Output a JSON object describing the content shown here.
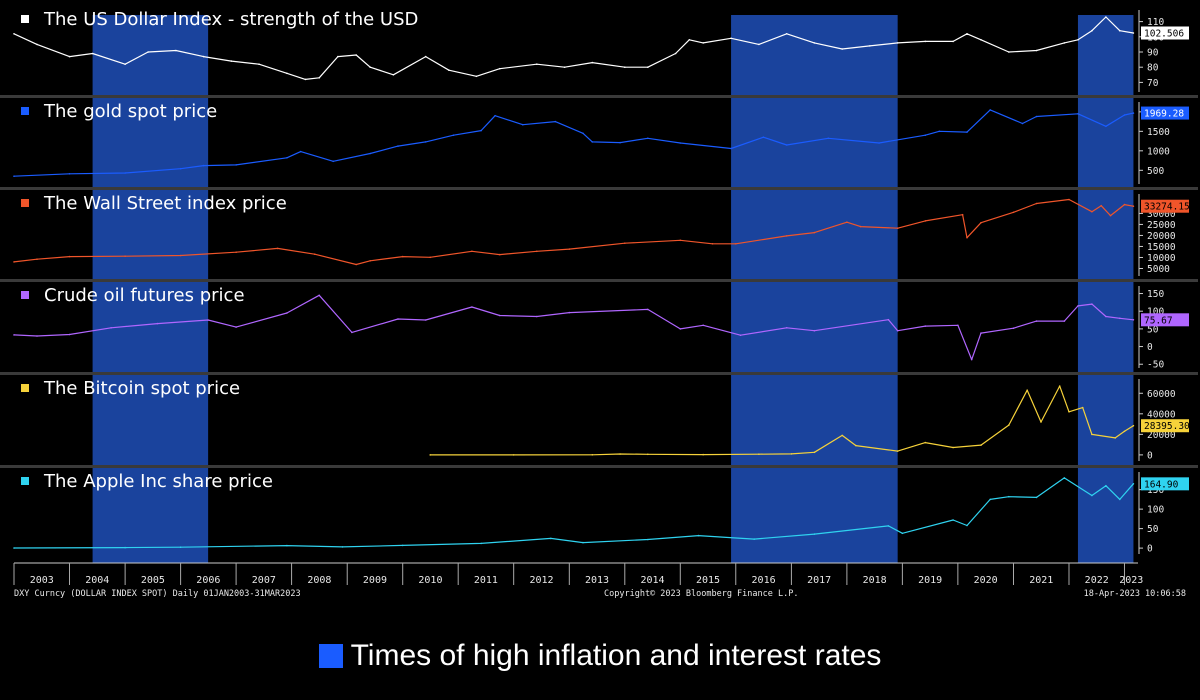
{
  "chart_data": {
    "type": "line",
    "x_range": [
      "2003-01-01",
      "2023-03-31"
    ],
    "x_ticks": [
      "2003",
      "2004",
      "2005",
      "2006",
      "2007",
      "2008",
      "2009",
      "2010",
      "2011",
      "2012",
      "2013",
      "2014",
      "2015",
      "2016",
      "2017",
      "2018",
      "2019",
      "2020",
      "2021",
      "2022",
      "2023"
    ],
    "shaded_periods": [
      [
        "2004-06",
        "2006-07"
      ],
      [
        "2015-12",
        "2018-12"
      ],
      [
        "2022-03",
        "2023-03"
      ]
    ],
    "shade_color": "#1f4fb8",
    "legend": {
      "label": "Times of high inflation and interest rates",
      "color": "#1a5cff"
    },
    "panels": [
      {
        "title": "The US Dollar Index - strength of the USD",
        "color": "#ffffff",
        "last_value": "102.506",
        "last_value_bg": "#ffffff",
        "last_value_fg": "#000000",
        "ylim": [
          65,
          115
        ],
        "yticks": [
          70,
          80,
          90,
          100,
          110
        ],
        "x": [
          "2003-01",
          "2003-06",
          "2004-01",
          "2004-06",
          "2005-01",
          "2005-06",
          "2005-12",
          "2006-06",
          "2006-12",
          "2007-06",
          "2007-12",
          "2008-04",
          "2008-07",
          "2008-11",
          "2009-03",
          "2009-06",
          "2009-11",
          "2010-06",
          "2010-11",
          "2011-05",
          "2011-10",
          "2012-06",
          "2012-12",
          "2013-06",
          "2014-01",
          "2014-06",
          "2014-12",
          "2015-03",
          "2015-06",
          "2015-12",
          "2016-06",
          "2016-12",
          "2017-06",
          "2017-12",
          "2018-06",
          "2018-12",
          "2019-06",
          "2019-12",
          "2020-03",
          "2020-06",
          "2020-12",
          "2021-06",
          "2021-12",
          "2022-03",
          "2022-06",
          "2022-09",
          "2022-12",
          "2023-03"
        ],
        "y": [
          102,
          95,
          87,
          89,
          82,
          90,
          91,
          87,
          84,
          82,
          76,
          72,
          73,
          87,
          88,
          80,
          75,
          87,
          78,
          74,
          79,
          82,
          80,
          83,
          80,
          80,
          89,
          98,
          96,
          99,
          95,
          102,
          96,
          92,
          94,
          96,
          97,
          97,
          102,
          98,
          90,
          91,
          96,
          98,
          104,
          113,
          104,
          102.5
        ]
      },
      {
        "title": "The gold spot price",
        "color": "#1a5cff",
        "last_value": "1969.28",
        "last_value_bg": "#1a5cff",
        "last_value_fg": "#ffffff",
        "ylim": [
          200,
          2150
        ],
        "yticks": [
          500,
          1000,
          1500,
          2000
        ],
        "x": [
          "2003-01",
          "2004-01",
          "2005-01",
          "2006-01",
          "2006-06",
          "2007-01",
          "2007-12",
          "2008-03",
          "2008-10",
          "2009-06",
          "2009-12",
          "2010-06",
          "2010-12",
          "2011-06",
          "2011-09",
          "2012-03",
          "2012-10",
          "2013-04",
          "2013-06",
          "2013-12",
          "2014-06",
          "2015-01",
          "2015-12",
          "2016-07",
          "2016-12",
          "2017-09",
          "2018-08",
          "2019-06",
          "2019-09",
          "2020-03",
          "2020-08",
          "2021-03",
          "2021-06",
          "2022-03",
          "2022-09",
          "2023-01",
          "2023-03"
        ],
        "y": [
          350,
          410,
          430,
          540,
          620,
          640,
          820,
          980,
          730,
          930,
          1120,
          1230,
          1400,
          1520,
          1900,
          1670,
          1750,
          1450,
          1230,
          1210,
          1320,
          1200,
          1060,
          1350,
          1150,
          1320,
          1200,
          1400,
          1500,
          1480,
          2050,
          1700,
          1880,
          1950,
          1630,
          1920,
          1969
        ]
      },
      {
        "title": "The Wall Street index price",
        "color": "#f0552a",
        "last_value": "33274.15",
        "last_value_bg": "#f0552a",
        "last_value_fg": "#000000",
        "ylim": [
          2500,
          37000
        ],
        "yticks": [
          5000,
          10000,
          15000,
          20000,
          25000,
          30000
        ],
        "x": [
          "2003-01",
          "2003-06",
          "2004-01",
          "2005-01",
          "2006-01",
          "2007-01",
          "2007-10",
          "2008-06",
          "2009-03",
          "2009-06",
          "2010-01",
          "2010-07",
          "2011-04",
          "2011-10",
          "2012-06",
          "2013-01",
          "2014-01",
          "2015-01",
          "2015-08",
          "2016-01",
          "2016-12",
          "2017-06",
          "2018-01",
          "2018-04",
          "2018-12",
          "2019-06",
          "2020-02",
          "2020-03",
          "2020-06",
          "2021-01",
          "2021-06",
          "2022-01",
          "2022-06",
          "2022-08",
          "2022-10",
          "2023-01",
          "2023-03"
        ],
        "y": [
          8000,
          9200,
          10400,
          10600,
          10900,
          12400,
          14100,
          11500,
          6800,
          8500,
          10400,
          10100,
          12800,
          11300,
          12800,
          13800,
          16500,
          17800,
          16200,
          16200,
          19800,
          21300,
          26000,
          24000,
          23300,
          26600,
          29400,
          19000,
          25800,
          30500,
          34500,
          36300,
          30800,
          33500,
          29000,
          34000,
          33274
        ]
      },
      {
        "title": "Crude oil futures price",
        "color": "#b066ff",
        "last_value": "75.67",
        "last_value_bg": "#b066ff",
        "last_value_fg": "#000000",
        "ylim": [
          -55,
          160
        ],
        "yticks": [
          -50,
          0,
          50,
          100,
          150
        ],
        "x": [
          "2003-01",
          "2003-06",
          "2004-01",
          "2004-10",
          "2005-08",
          "2006-07",
          "2007-01",
          "2007-12",
          "2008-07",
          "2009-02",
          "2009-12",
          "2010-06",
          "2011-04",
          "2011-10",
          "2012-06",
          "2013-01",
          "2014-06",
          "2015-01",
          "2015-06",
          "2016-02",
          "2016-12",
          "2017-06",
          "2018-10",
          "2018-12",
          "2019-06",
          "2020-01",
          "2020-04",
          "2020-06",
          "2021-01",
          "2021-06",
          "2021-12",
          "2022-03",
          "2022-06",
          "2022-09",
          "2022-12",
          "2023-03"
        ],
        "y": [
          33,
          30,
          34,
          53,
          65,
          75,
          55,
          95,
          145,
          40,
          78,
          75,
          112,
          88,
          85,
          96,
          105,
          50,
          60,
          32,
          53,
          45,
          76,
          45,
          58,
          60,
          -37,
          38,
          52,
          72,
          72,
          115,
          120,
          85,
          80,
          75.67
        ]
      },
      {
        "title": "The Bitcoin spot price",
        "color": "#f6d23a",
        "last_value": "28395.30",
        "last_value_bg": "#f6d23a",
        "last_value_fg": "#000000",
        "ylim": [
          -4000,
          70000
        ],
        "yticks": [
          0,
          20000,
          40000,
          60000
        ],
        "x": [
          "2010-07",
          "2012-01",
          "2013-06",
          "2013-12",
          "2014-06",
          "2015-06",
          "2016-06",
          "2017-01",
          "2017-06",
          "2017-12",
          "2018-03",
          "2018-12",
          "2019-06",
          "2019-12",
          "2020-06",
          "2020-12",
          "2021-04",
          "2021-07",
          "2021-11",
          "2022-01",
          "2022-04",
          "2022-06",
          "2022-11",
          "2023-01",
          "2023-03"
        ],
        "y": [
          0,
          5,
          100,
          900,
          600,
          250,
          700,
          1000,
          2500,
          19000,
          9000,
          3700,
          12000,
          7200,
          9500,
          29000,
          63000,
          32000,
          67000,
          42000,
          46000,
          20000,
          16500,
          23000,
          28395
        ]
      },
      {
        "title": "The Apple Inc share price",
        "color": "#2fd3f0",
        "last_value": "164.90",
        "last_value_bg": "#2fd3f0",
        "last_value_fg": "#000000",
        "ylim": [
          -10,
          185
        ],
        "yticks": [
          0,
          50,
          100,
          150
        ],
        "x": [
          "2003-01",
          "2005-01",
          "2006-01",
          "2007-12",
          "2008-12",
          "2010-01",
          "2011-06",
          "2012-09",
          "2013-04",
          "2014-06",
          "2015-05",
          "2016-05",
          "2017-06",
          "2018-10",
          "2019-01",
          "2019-12",
          "2020-03",
          "2020-08",
          "2020-12",
          "2021-06",
          "2021-12",
          "2022-06",
          "2022-09",
          "2022-12",
          "2023-03"
        ],
        "y": [
          0.3,
          1.3,
          2.3,
          6.5,
          3,
          7,
          12,
          25,
          14,
          22,
          32,
          23,
          36,
          57,
          38,
          72,
          58,
          125,
          132,
          130,
          180,
          135,
          160,
          125,
          164.9
        ]
      }
    ],
    "footer": {
      "left": "DXY Curncy (DOLLAR INDEX SPOT)  Daily 01JAN2003-31MAR2023",
      "center": "Copyright© 2023 Bloomberg Finance L.P.",
      "right": "18-Apr-2023 10:06:58"
    }
  }
}
